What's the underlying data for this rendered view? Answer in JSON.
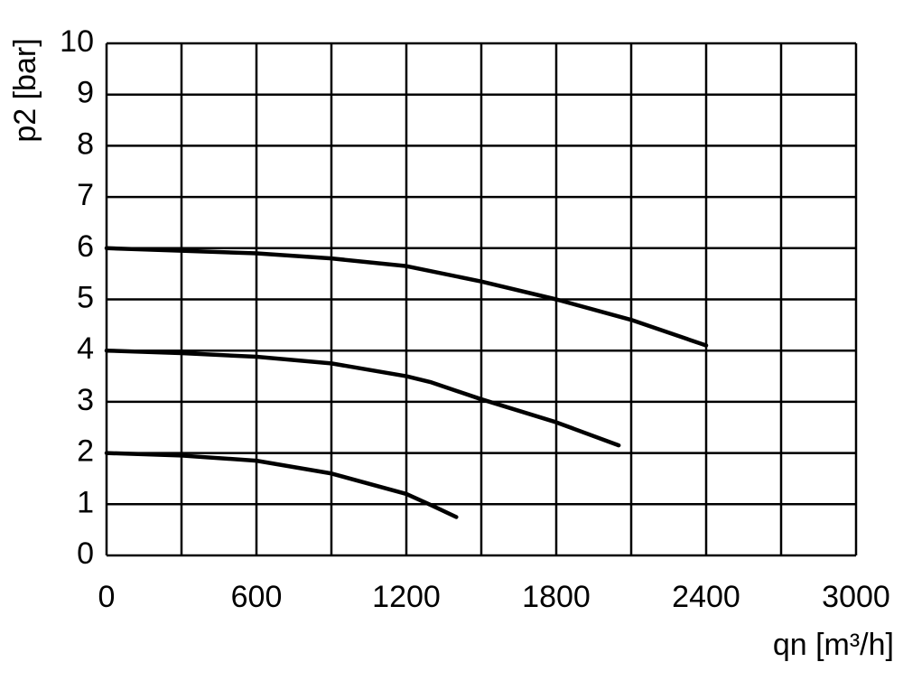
{
  "chart_data": {
    "type": "line",
    "xlabel": "qn [m³/h]",
    "ylabel": "p2 [bar]",
    "xlim": [
      0,
      3000
    ],
    "xticks": [
      0,
      600,
      1200,
      1800,
      2400,
      3000
    ],
    "x_minor_grid": [
      300,
      900,
      1500,
      2100,
      2700
    ],
    "ylim": [
      0,
      10
    ],
    "yticks": [
      0,
      1,
      2,
      3,
      4,
      5,
      6,
      7,
      8,
      9,
      10
    ],
    "grid": true,
    "series": [
      {
        "color": "#000000",
        "x": [
          0,
          300,
          600,
          900,
          1200,
          1500,
          1800,
          2100,
          2400
        ],
        "values": [
          6.0,
          5.95,
          5.9,
          5.8,
          5.65,
          5.35,
          5.0,
          4.6,
          4.1
        ]
      },
      {
        "color": "#000000",
        "x": [
          0,
          300,
          600,
          900,
          1200,
          1300,
          1500,
          1800,
          2050
        ],
        "values": [
          4.0,
          3.95,
          3.88,
          3.75,
          3.5,
          3.38,
          3.05,
          2.6,
          2.15
        ]
      },
      {
        "color": "#000000",
        "x": [
          0,
          300,
          600,
          900,
          1200,
          1300,
          1400
        ],
        "values": [
          2.0,
          1.95,
          1.85,
          1.6,
          1.2,
          0.98,
          0.75
        ]
      }
    ]
  }
}
